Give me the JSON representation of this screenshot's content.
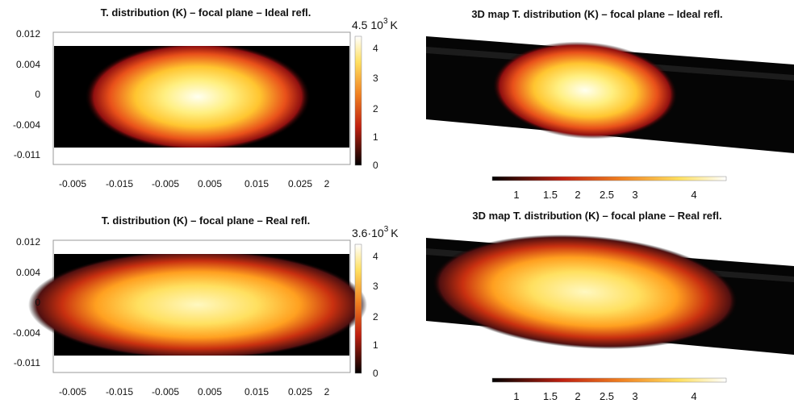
{
  "figure": {
    "panels": [
      {
        "title": "T. distribution (K) – focal plane – Ideal refl.",
        "yticks": [
          "0.012",
          "0.004",
          "0",
          "-0.004",
          "-0.011"
        ],
        "xticks": [
          "-0.005",
          "-0.015",
          "-0.005",
          "0.005",
          "0.015",
          "0.025",
          "2"
        ],
        "colorbar_ticks": [
          "4",
          "3",
          "2",
          "1",
          "0"
        ],
        "colorbar_max": {
          "base": "4.5 10",
          "exp": "3",
          "unit": "K"
        }
      },
      {
        "title": "3D map T. distribution (K) – focal plane – Ideal refl.",
        "colorbar_ticks": [
          "1",
          "1.5",
          "2",
          "2.5",
          "3",
          "4"
        ]
      },
      {
        "title": "T. distribution (K) – focal plane – Real refl.",
        "yticks": [
          "0.012",
          "0.004",
          "0",
          "-0.004",
          "-0.011"
        ],
        "xticks": [
          "-0.005",
          "-0.015",
          "-0.005",
          "0.005",
          "0.015",
          "0.025",
          "2"
        ],
        "colorbar_ticks": [
          "4",
          "3",
          "2",
          "1",
          "0"
        ],
        "colorbar_max": {
          "base": "3.6·10",
          "exp": "3",
          "unit": "K"
        }
      },
      {
        "title": "3D map T. distribution (K) – focal plane – Real refl.",
        "colorbar_ticks": [
          "1",
          "1.5",
          "2",
          "2.5",
          "3",
          "4"
        ]
      }
    ]
  }
}
